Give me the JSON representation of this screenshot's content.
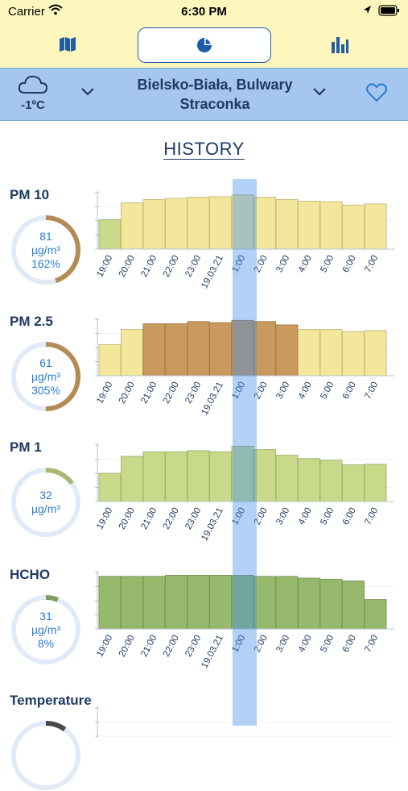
{
  "status": {
    "carrier": "Carrier",
    "time": "6:30 PM"
  },
  "tabs": [
    {
      "icon": "map-icon"
    },
    {
      "icon": "pie-chart-icon",
      "active": true
    },
    {
      "icon": "bar-chart-icon"
    }
  ],
  "location": {
    "temperature": "-1ºC",
    "name": "Bielsko-Biała, Bulwary Straconka",
    "weather_icon": "cloud-icon"
  },
  "title": "HISTORY",
  "colors": {
    "good": "#c8d98a",
    "moderate": "#f2e79b",
    "bad": "#c99a5e",
    "very_good": "#97b96d",
    "gauge_track": "#e1ebf7",
    "highlight": "#3c8ceb"
  },
  "x_labels": [
    "19:00",
    "20:00",
    "21:00",
    "22:00",
    "23:00",
    "19.03.21",
    "1:00",
    "2:00",
    "3:00",
    "4:00",
    "5:00",
    "6:00",
    "7:00"
  ],
  "chart_data": [
    {
      "type": "bar",
      "title": "PM 10",
      "categories": [
        "19:00",
        "20:00",
        "21:00",
        "22:00",
        "23:00",
        "19.03.21",
        "1:00",
        "2:00",
        "3:00",
        "4:00",
        "5:00",
        "6:00",
        "7:00"
      ],
      "values": [
        0.52,
        0.82,
        0.88,
        0.9,
        0.92,
        0.93,
        0.96,
        0.92,
        0.88,
        0.85,
        0.84,
        0.78,
        0.8
      ],
      "bar_levels": [
        "good",
        "moderate",
        "moderate",
        "moderate",
        "moderate",
        "moderate",
        "moderate",
        "moderate",
        "moderate",
        "moderate",
        "moderate",
        "moderate",
        "moderate"
      ],
      "gauge": {
        "value": "81",
        "unit": "µg/m³",
        "percent": "162%",
        "fraction": 0.45,
        "level": "bad"
      }
    },
    {
      "type": "bar",
      "title": "PM 2.5",
      "categories": [
        "19:00",
        "20:00",
        "21:00",
        "22:00",
        "23:00",
        "19.03.21",
        "1:00",
        "2:00",
        "3:00",
        "4:00",
        "5:00",
        "6:00",
        "7:00"
      ],
      "values": [
        0.55,
        0.82,
        0.92,
        0.92,
        0.96,
        0.94,
        0.98,
        0.96,
        0.9,
        0.82,
        0.82,
        0.78,
        0.8
      ],
      "bar_levels": [
        "moderate",
        "moderate",
        "bad",
        "bad",
        "bad",
        "bad",
        "bad",
        "bad",
        "bad",
        "moderate",
        "moderate",
        "moderate",
        "moderate"
      ],
      "gauge": {
        "value": "61",
        "unit": "µg/m³",
        "percent": "305%",
        "fraction": 0.5,
        "level": "bad"
      }
    },
    {
      "type": "bar",
      "title": "PM 1",
      "categories": [
        "19:00",
        "20:00",
        "21:00",
        "22:00",
        "23:00",
        "19.03.21",
        "1:00",
        "2:00",
        "3:00",
        "4:00",
        "5:00",
        "6:00",
        "7:00"
      ],
      "values": [
        0.5,
        0.8,
        0.88,
        0.88,
        0.9,
        0.88,
        0.98,
        0.92,
        0.82,
        0.76,
        0.73,
        0.65,
        0.66
      ],
      "bar_levels": [
        "good",
        "good",
        "good",
        "good",
        "good",
        "good",
        "good",
        "good",
        "good",
        "good",
        "good",
        "good",
        "good"
      ],
      "gauge": {
        "value": "32",
        "unit": "µg/m³",
        "percent": "",
        "fraction": 0.15,
        "level": "good"
      }
    },
    {
      "type": "bar",
      "title": "HCHO",
      "categories": [
        "19:00",
        "20:00",
        "21:00",
        "22:00",
        "23:00",
        "19.03.21",
        "1:00",
        "2:00",
        "3:00",
        "4:00",
        "5:00",
        "6:00",
        "7:00"
      ],
      "values": [
        0.93,
        0.93,
        0.93,
        0.95,
        0.95,
        0.95,
        0.95,
        0.93,
        0.93,
        0.9,
        0.88,
        0.85,
        0.52
      ],
      "bar_levels": [
        "very_good",
        "very_good",
        "very_good",
        "very_good",
        "very_good",
        "very_good",
        "very_good",
        "very_good",
        "very_good",
        "very_good",
        "very_good",
        "very_good",
        "very_good"
      ],
      "gauge": {
        "value": "31",
        "unit": "µg/m³",
        "percent": "8%",
        "fraction": 0.06,
        "level": "very_good"
      }
    },
    {
      "type": "bar",
      "title": "Temperature",
      "categories": [],
      "values": [],
      "bar_levels": [],
      "gauge": {
        "value": "",
        "unit": "",
        "percent": "",
        "fraction": 0.1,
        "level": "none"
      }
    }
  ]
}
